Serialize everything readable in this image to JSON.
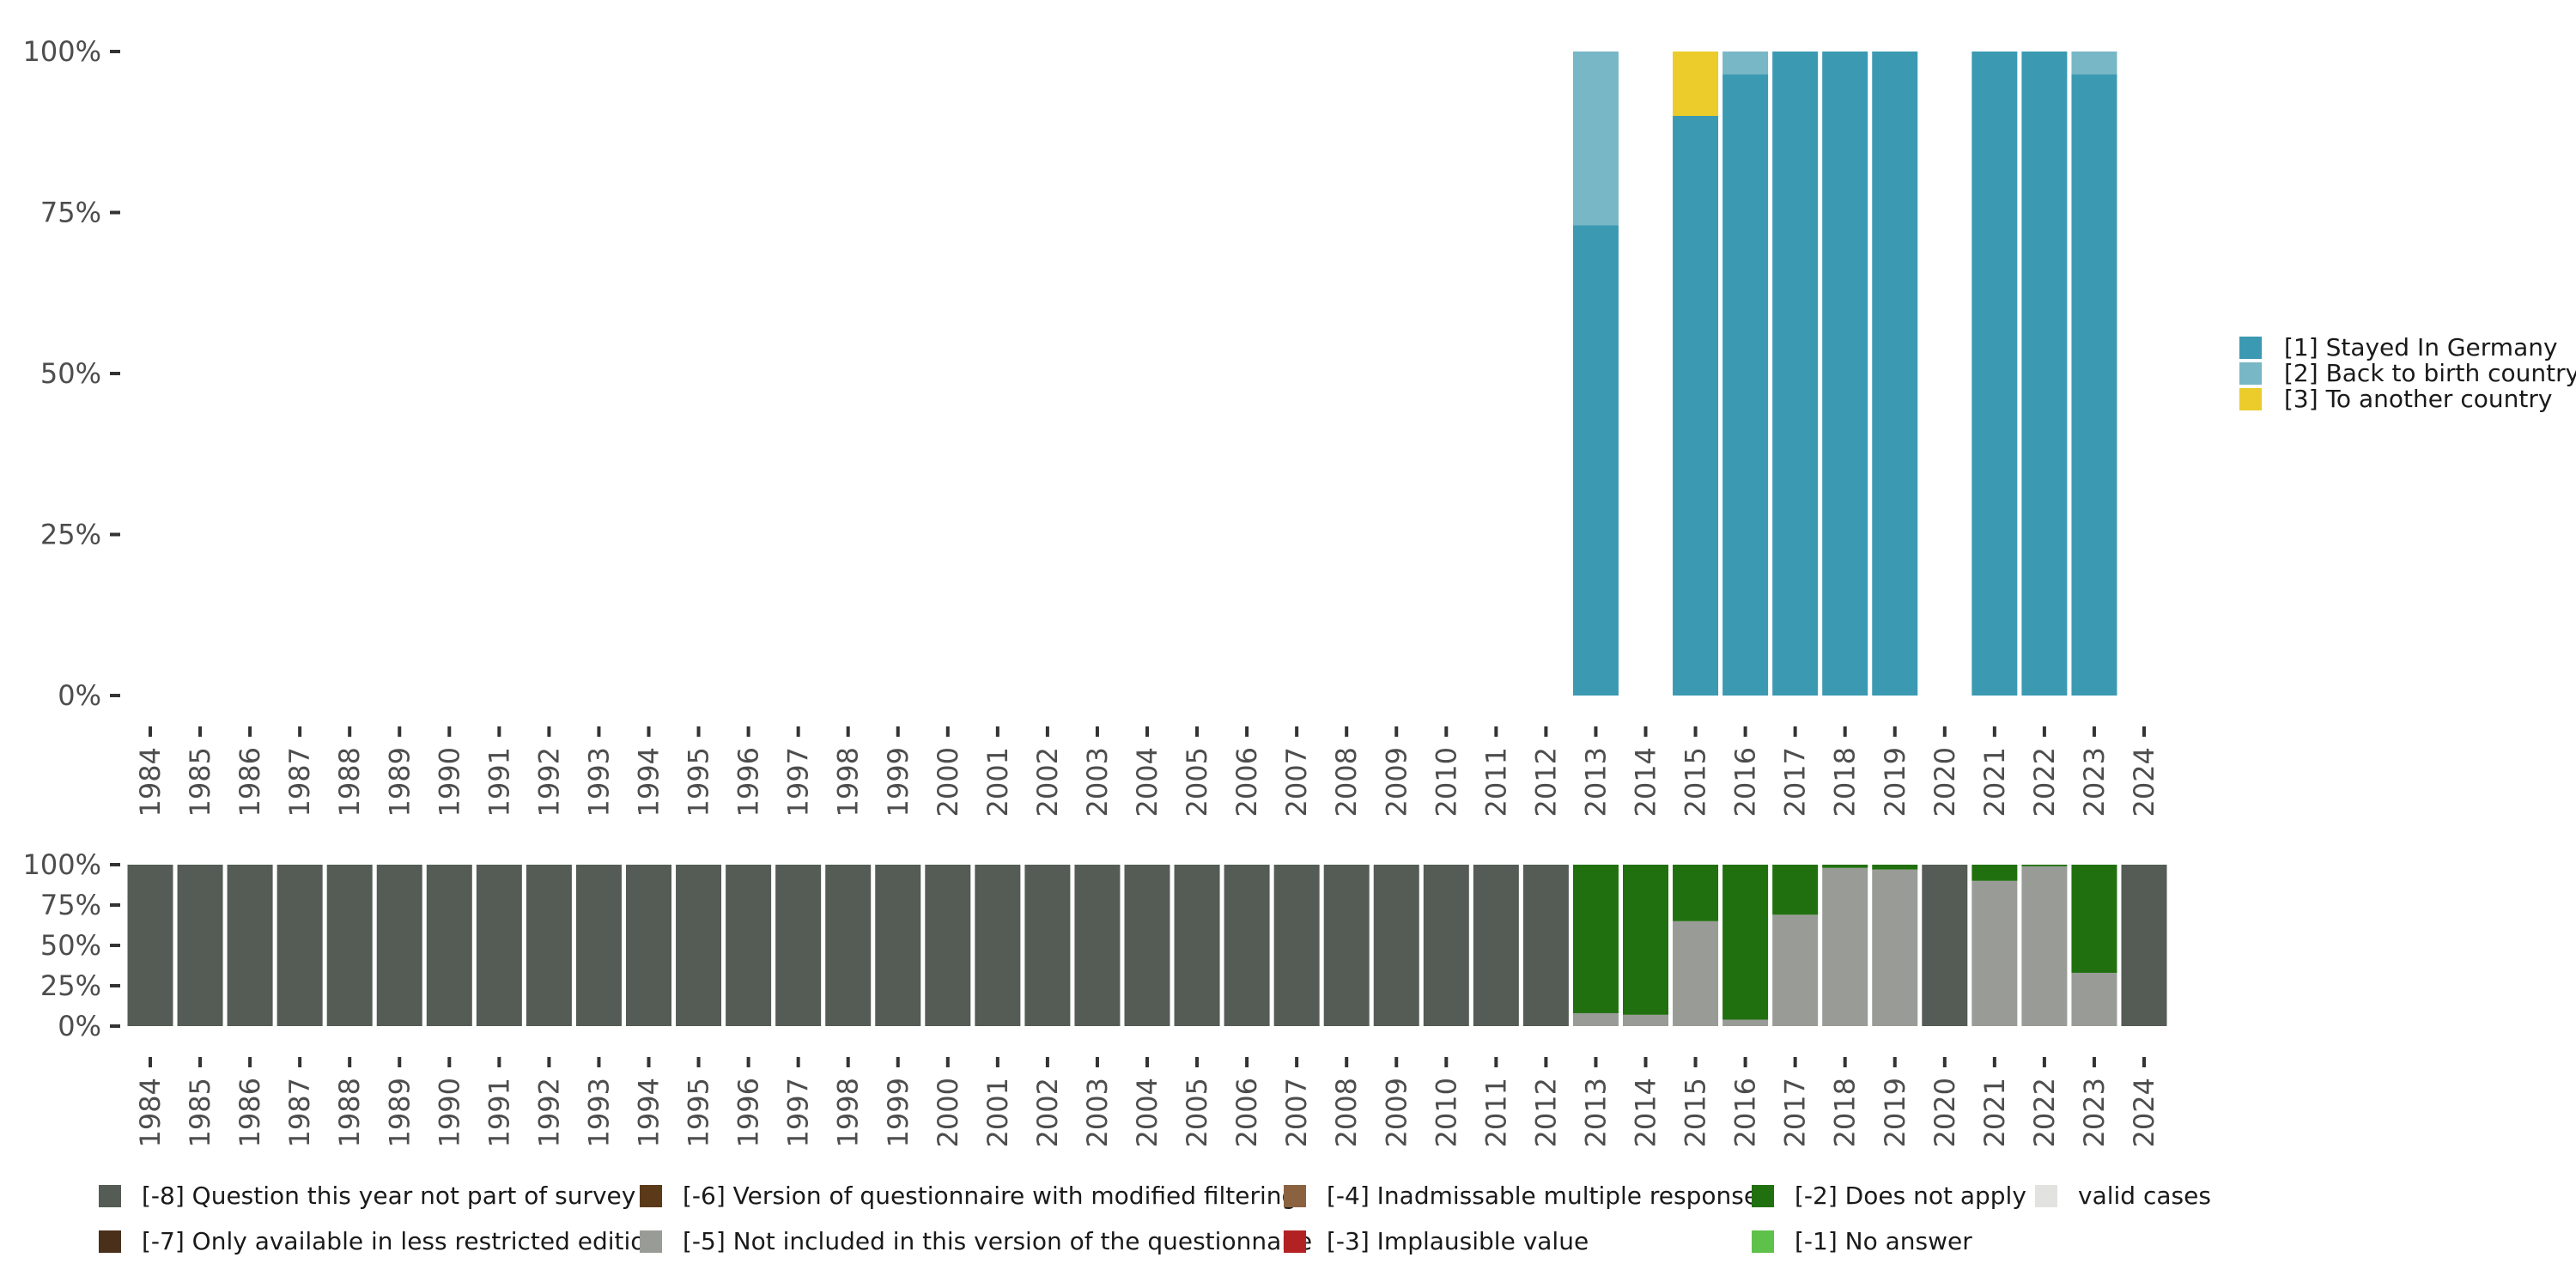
{
  "chart_data": [
    {
      "type": "stacked-bar",
      "years": [
        "1984",
        "1985",
        "1986",
        "1987",
        "1988",
        "1989",
        "1990",
        "1991",
        "1992",
        "1993",
        "1994",
        "1995",
        "1996",
        "1997",
        "1998",
        "1999",
        "2000",
        "2001",
        "2002",
        "2003",
        "2004",
        "2005",
        "2006",
        "2007",
        "2008",
        "2009",
        "2010",
        "2011",
        "2012",
        "2013",
        "2014",
        "2015",
        "2016",
        "2017",
        "2018",
        "2019",
        "2020",
        "2021",
        "2022",
        "2023",
        "2024"
      ],
      "y_ticks": [
        "0%",
        "25%",
        "50%",
        "75%",
        "100%"
      ],
      "ylim": [
        0,
        100
      ],
      "series": [
        {
          "name": "[1] Stayed In Germany",
          "color": "#3b9ab2",
          "values": {
            "2013": 73,
            "2015": 90,
            "2016": 96.5,
            "2017": 100,
            "2018": 100,
            "2019": 100,
            "2021": 100,
            "2022": 100,
            "2023": 96.5
          }
        },
        {
          "name": "[2] Back to birth country",
          "color": "#78b7c5",
          "values": {
            "2013": 27,
            "2015": 0,
            "2016": 3.5,
            "2017": 0,
            "2018": 0,
            "2019": 0,
            "2021": 0,
            "2022": 0,
            "2023": 3.5
          }
        },
        {
          "name": "[3] To another country",
          "color": "#ebcc2a",
          "values": {
            "2013": 0,
            "2015": 10,
            "2016": 0,
            "2017": 0,
            "2018": 0,
            "2019": 0,
            "2021": 0,
            "2022": 0,
            "2023": 0
          }
        }
      ],
      "legend_position": "right"
    },
    {
      "type": "stacked-bar",
      "years": [
        "1984",
        "1985",
        "1986",
        "1987",
        "1988",
        "1989",
        "1990",
        "1991",
        "1992",
        "1993",
        "1994",
        "1995",
        "1996",
        "1997",
        "1998",
        "1999",
        "2000",
        "2001",
        "2002",
        "2003",
        "2004",
        "2005",
        "2006",
        "2007",
        "2008",
        "2009",
        "2010",
        "2011",
        "2012",
        "2013",
        "2014",
        "2015",
        "2016",
        "2017",
        "2018",
        "2019",
        "2020",
        "2021",
        "2022",
        "2023",
        "2024"
      ],
      "y_ticks": [
        "0%",
        "25%",
        "50%",
        "75%",
        "100%"
      ],
      "ylim": [
        0,
        100
      ],
      "series": [
        {
          "name": "[-8] Question this year not part of survey",
          "color": "#555b55",
          "values": {
            "1984": 100,
            "1985": 100,
            "1986": 100,
            "1987": 100,
            "1988": 100,
            "1989": 100,
            "1990": 100,
            "1991": 100,
            "1992": 100,
            "1993": 100,
            "1994": 100,
            "1995": 100,
            "1996": 100,
            "1997": 100,
            "1998": 100,
            "1999": 100,
            "2000": 100,
            "2001": 100,
            "2002": 100,
            "2003": 100,
            "2004": 100,
            "2005": 100,
            "2006": 100,
            "2007": 100,
            "2008": 100,
            "2009": 100,
            "2010": 100,
            "2011": 100,
            "2012": 100,
            "2020": 100,
            "2024": 100
          }
        },
        {
          "name": "[-7] Only available in less restricted edition",
          "color": "#4a2f1a",
          "values": {}
        },
        {
          "name": "[-6] Version of questionnaire with modified filtering",
          "color": "#5b3a1a",
          "values": {}
        },
        {
          "name": "[-5] Not included in this version of the questionnaire",
          "color": "#999c96",
          "values": {
            "2013": 8,
            "2014": 7,
            "2015": 65,
            "2016": 4,
            "2017": 69,
            "2018": 98,
            "2019": 97,
            "2021": 90,
            "2022": 99,
            "2023": 33
          }
        },
        {
          "name": "[-4] Inadmissable multiple response",
          "color": "#8b6240",
          "values": {}
        },
        {
          "name": "[-3] Implausible value",
          "color": "#b22222",
          "values": {}
        },
        {
          "name": "[-2] Does not apply",
          "color": "#21700f",
          "values": {
            "2013": 92,
            "2014": 93,
            "2015": 35,
            "2016": 96,
            "2017": 31,
            "2018": 2,
            "2019": 3,
            "2021": 10,
            "2022": 1,
            "2023": 67
          }
        },
        {
          "name": "[-1] No answer",
          "color": "#5ec14a",
          "values": {}
        },
        {
          "name": "valid cases",
          "color": "#e2e2e0",
          "values": {}
        }
      ],
      "legend_position": "bottom"
    }
  ]
}
